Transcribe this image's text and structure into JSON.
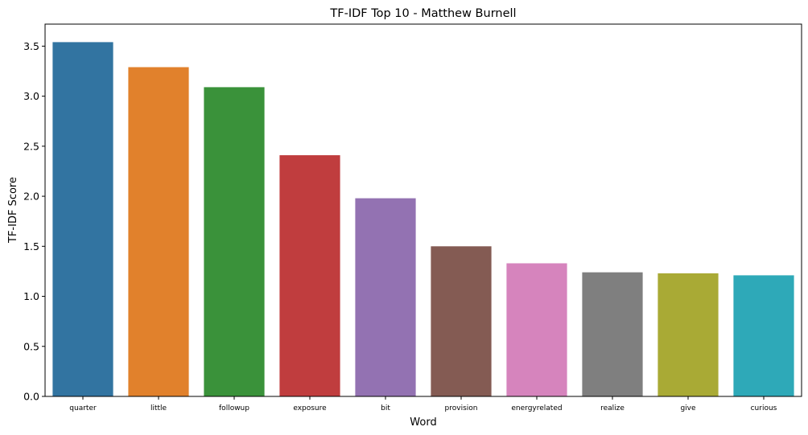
{
  "chart_data": {
    "type": "bar",
    "title": "TF-IDF Top 10 - Matthew Burnell",
    "xlabel": "Word",
    "ylabel": "TF-IDF Score",
    "categories": [
      "quarter",
      "little",
      "followup",
      "exposure",
      "bit",
      "provision",
      "energyrelated",
      "realize",
      "give",
      "curious"
    ],
    "values": [
      3.54,
      3.29,
      3.09,
      2.41,
      1.98,
      1.5,
      1.33,
      1.24,
      1.23,
      1.21
    ],
    "colors": [
      "#3274a1",
      "#e1812c",
      "#3a923a",
      "#c03d3e",
      "#9372b2",
      "#845b53",
      "#d684bd",
      "#7f7f7f",
      "#a9aa35",
      "#2ea9b8"
    ],
    "ylim": [
      0,
      3.72
    ],
    "yticks": [
      "0.0",
      "0.5",
      "1.0",
      "1.5",
      "2.0",
      "2.5",
      "3.0",
      "3.5"
    ],
    "grid": false,
    "legend": "none"
  }
}
